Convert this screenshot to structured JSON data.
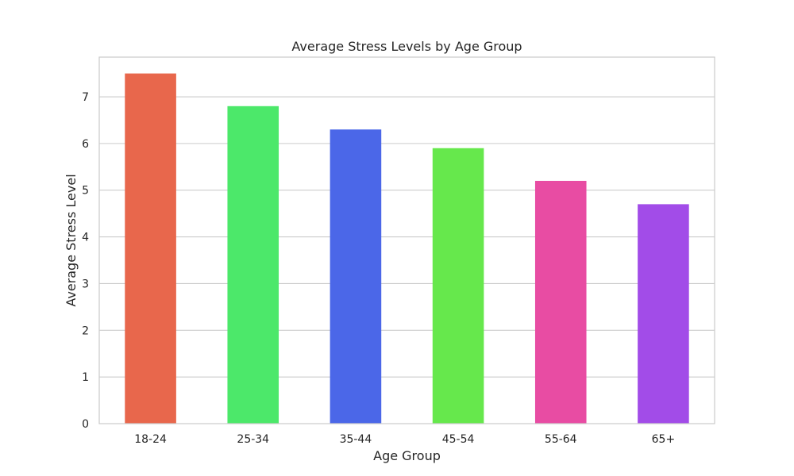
{
  "chart_data": {
    "type": "bar",
    "title": "Average Stress Levels by Age Group",
    "xlabel": "Age Group",
    "ylabel": "Average Stress Level",
    "categories": [
      "18-24",
      "25-34",
      "35-44",
      "45-54",
      "55-64",
      "65+"
    ],
    "values": [
      7.5,
      6.8,
      6.3,
      5.9,
      5.2,
      4.7
    ],
    "bar_colors": [
      "#E8674C",
      "#4CE86A",
      "#4B67E8",
      "#66E84C",
      "#E84CA3",
      "#A24CE8"
    ],
    "ylim": [
      0,
      7.85
    ],
    "yticks": [
      0,
      1,
      2,
      3,
      4,
      5,
      6,
      7
    ],
    "grid": true,
    "legend": false
  }
}
